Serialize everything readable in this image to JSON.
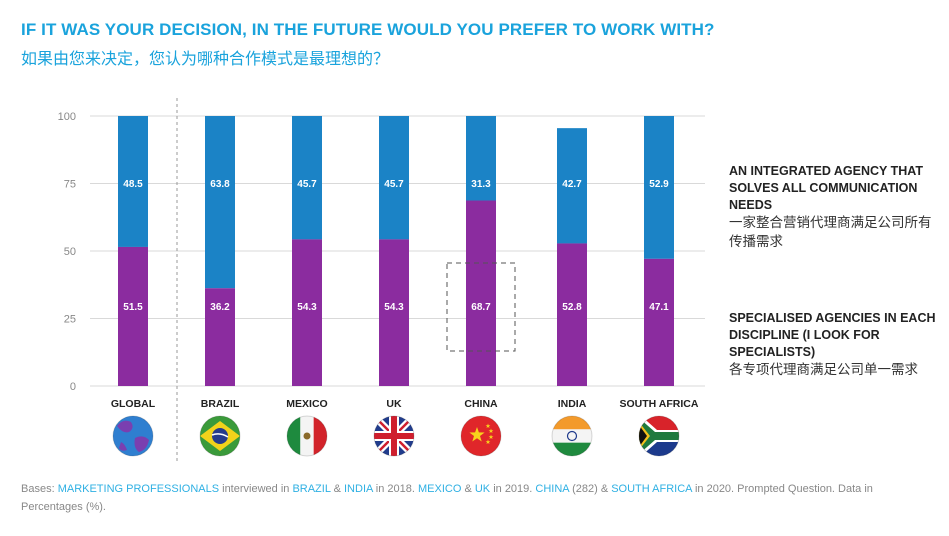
{
  "title": "IF IT WAS YOUR DECISION, IN THE FUTURE WOULD YOU PREFER TO WORK WITH?",
  "subtitle": "如果由您来决定，您认为哪种合作模式是最理想的？",
  "legend": {
    "integrated_en": "AN INTEGRATED AGENCY THAT SOLVES ALL COMMUNICATION NEEDS",
    "integrated_zh": "一家整合营销代理商满足公司所有传播需求",
    "specialised_en": "SPECIALISED AGENCIES IN EACH DISCIPLINE (I LOOK FOR SPECIALISTS)",
    "specialised_zh": "各专项代理商满足公司单一需求"
  },
  "footer": {
    "p1": "Bases: ",
    "h1": "MARKETING PROFESSIONALS",
    "p2": " interviewed in ",
    "h2": "BRAZIL",
    "p3": " & ",
    "h3": "INDIA",
    "p4": " in 2018. ",
    "h4": "MEXICO",
    "p5": " & ",
    "h5": "UK",
    "p6": " in 2019. ",
    "h6": "CHINA",
    "p7": " (282) & ",
    "h7": "SOUTH AFRICA",
    "p8": " in 2020. Prompted Question. Data in Percentages (%)."
  },
  "colors": {
    "integrated": "#1b83c6",
    "specialised": "#8b2c9f",
    "axis_text": "#888888",
    "grid": "#d9d9d9"
  },
  "chart_data": {
    "type": "bar",
    "stacked": true,
    "title": "IF IT WAS YOUR DECISION, IN THE FUTURE WOULD YOU PREFER TO WORK WITH?",
    "categories": [
      "GLOBAL",
      "BRAZIL",
      "MEXICO",
      "UK",
      "CHINA",
      "INDIA",
      "SOUTH AFRICA"
    ],
    "series": [
      {
        "name": "SPECIALISED AGENCIES IN EACH DISCIPLINE (I LOOK FOR SPECIALISTS)",
        "values": [
          51.5,
          36.2,
          54.3,
          54.3,
          68.7,
          52.8,
          47.1
        ]
      },
      {
        "name": "AN INTEGRATED AGENCY THAT SOLVES ALL COMMUNICATION NEEDS",
        "values": [
          48.5,
          63.8,
          45.7,
          45.7,
          31.3,
          42.7,
          52.9
        ]
      }
    ],
    "flags": [
      "globe-icon",
      "brazil-flag-icon",
      "mexico-flag-icon",
      "uk-flag-icon",
      "china-flag-icon",
      "india-flag-icon",
      "south-africa-flag-icon"
    ],
    "yticks": [
      "100",
      "75",
      "50",
      "25",
      "0"
    ],
    "ylim": [
      0,
      100
    ],
    "highlight": "CHINA",
    "xlabel": "",
    "ylabel": ""
  }
}
